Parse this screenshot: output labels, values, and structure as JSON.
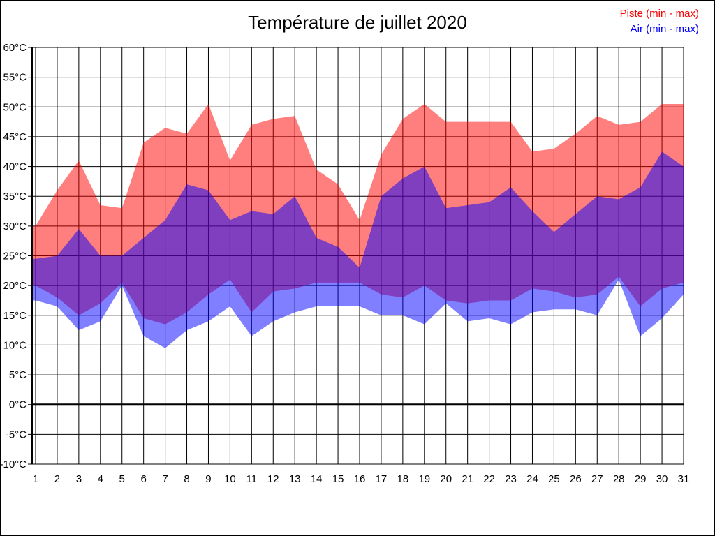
{
  "chart_data": {
    "type": "area",
    "title": "Température de juillet 2020",
    "xlabel": "",
    "ylabel": "",
    "y_unit": "°C",
    "ylim": [
      -10,
      60
    ],
    "ytick_step": 5,
    "grid": true,
    "zero_line_bold": true,
    "legend_position": "top-right",
    "days": [
      1,
      2,
      3,
      4,
      5,
      6,
      7,
      8,
      9,
      10,
      11,
      12,
      13,
      14,
      15,
      16,
      17,
      18,
      19,
      20,
      21,
      22,
      23,
      24,
      25,
      26,
      27,
      28,
      29,
      30,
      31
    ],
    "series": [
      {
        "name": "Piste (min - max)",
        "legend_color": "#ff0000",
        "fill": "rgba(255,0,0,0.5)",
        "max": [
          30,
          36,
          41,
          33.5,
          33,
          44,
          46.5,
          45.5,
          50.5,
          41,
          47,
          48,
          48.5,
          39.5,
          37,
          31,
          42,
          48,
          50.5,
          47.5,
          47.5,
          47.5,
          47.5,
          42.5,
          43,
          45.5,
          48.5,
          47,
          47.5,
          50.5,
          50.5
        ],
        "min": [
          20,
          18,
          15,
          17,
          20.5,
          14.5,
          13.5,
          15.5,
          18.5,
          21,
          15.5,
          19,
          19.5,
          20.5,
          20.5,
          20.5,
          18.5,
          18,
          20,
          17.5,
          17,
          17.5,
          17.5,
          19.5,
          19,
          18,
          18.5,
          21.5,
          16.5,
          19.5,
          20.5
        ]
      },
      {
        "name": "Air (min - max)",
        "legend_color": "#0000ff",
        "fill": "rgba(0,0,255,0.5)",
        "max": [
          24.5,
          25,
          29.5,
          25,
          25,
          28,
          31,
          37,
          36,
          31,
          32.5,
          32,
          35,
          28,
          26.5,
          23,
          35,
          38,
          40,
          33,
          33.5,
          34,
          36.5,
          32.5,
          29,
          32,
          35,
          34.5,
          36.5,
          42.5,
          40
        ],
        "min": [
          17.5,
          16.5,
          12.5,
          14,
          20,
          11.5,
          9.5,
          12.5,
          14,
          16.5,
          11.5,
          14,
          15.5,
          16.5,
          16.5,
          16.5,
          15,
          15,
          13.5,
          17,
          14,
          14.5,
          13.5,
          15.5,
          16,
          16,
          15,
          21,
          11.5,
          14.5,
          18.5
        ]
      }
    ],
    "overlap_color_rendered": "#8040bf",
    "gridline_color": "#000000"
  }
}
